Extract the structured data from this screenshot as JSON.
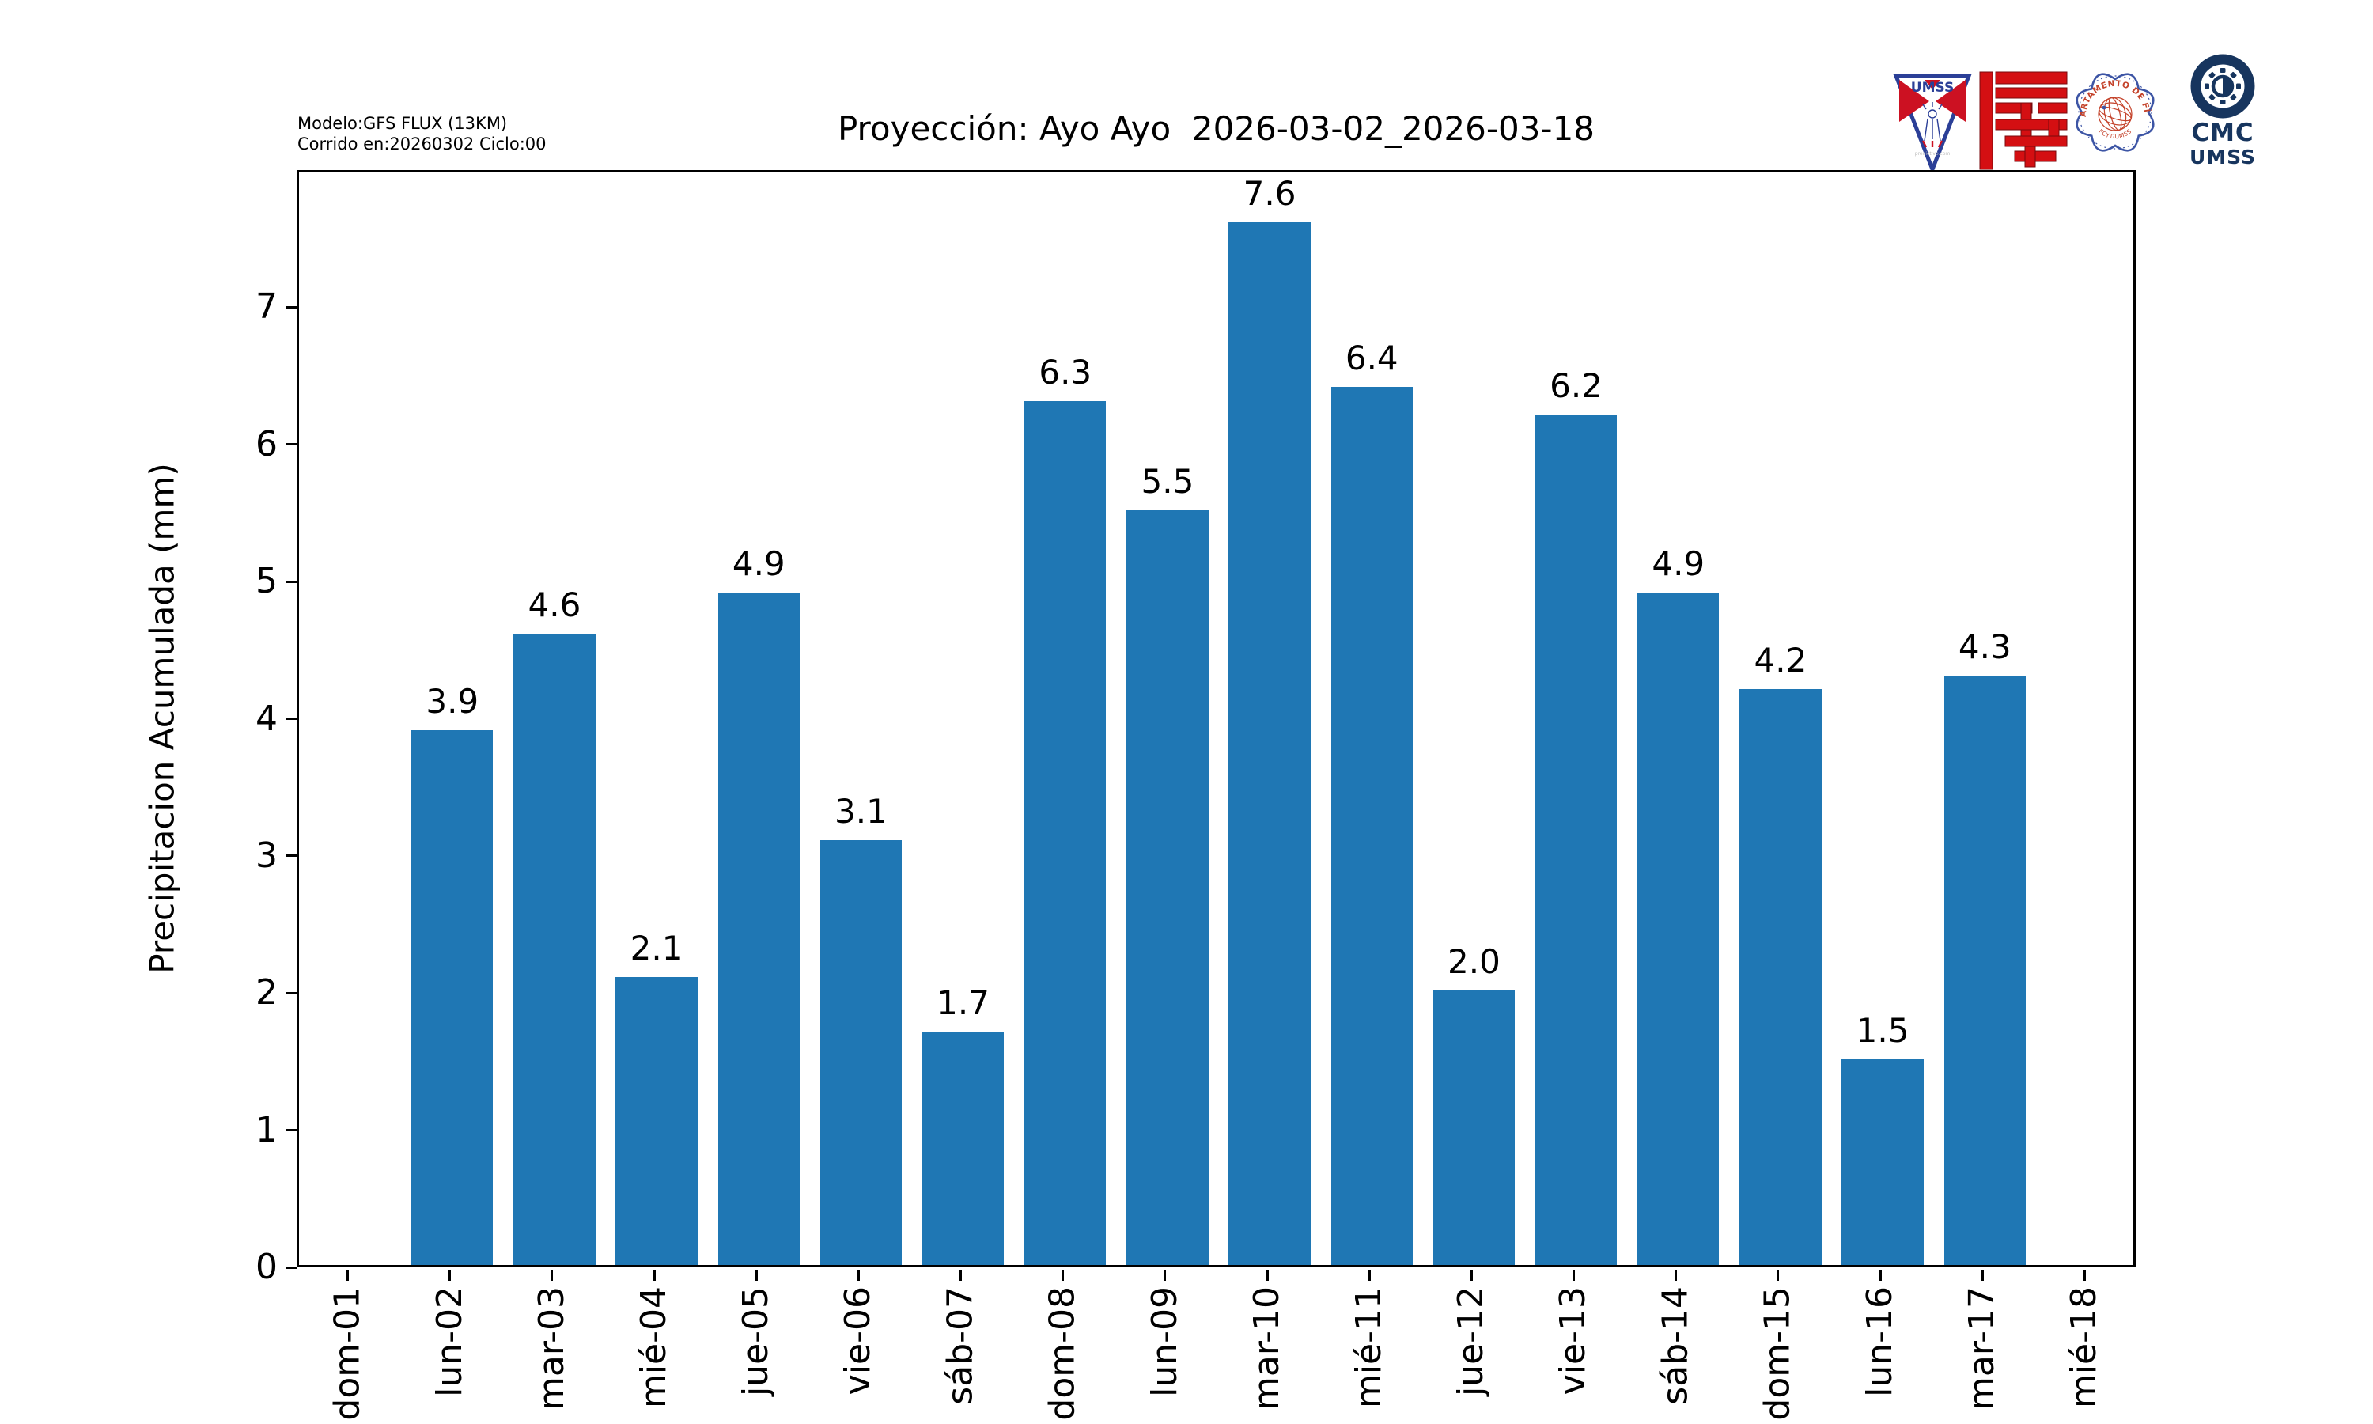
{
  "header": {
    "model_line1": "Modelo:GFS FLUX (13KM)",
    "model_line2": "Corrido en:20260302 Ciclo:00",
    "logos": [
      {
        "name": "umss-pennant",
        "text": "UMSS",
        "watermark": "predictivo.com"
      },
      {
        "name": "fcyt-red-monogram"
      },
      {
        "name": "departamento-fisica-seal",
        "text_top": "DEPARTAMENTO DE FÍSICA",
        "text_bottom": "FCYT-UMSS"
      },
      {
        "name": "cmc-umss",
        "line1": "CMC",
        "line2": "UMSS"
      }
    ]
  },
  "chart_data": {
    "type": "bar",
    "title": "Proyección: Ayo Ayo  2026-03-02_2026-03-18",
    "xlabel": "",
    "ylabel": "Precipitacion Acumulada (mm)",
    "categories": [
      "dom-01",
      "lun-02",
      "mar-03",
      "mié-04",
      "jue-05",
      "vie-06",
      "sáb-07",
      "dom-08",
      "lun-09",
      "mar-10",
      "mié-11",
      "jue-12",
      "vie-13",
      "sáb-14",
      "dom-15",
      "lun-16",
      "mar-17",
      "mié-18"
    ],
    "values": [
      null,
      3.9,
      4.6,
      2.1,
      4.9,
      3.1,
      1.7,
      6.3,
      5.5,
      7.6,
      6.4,
      2.0,
      6.2,
      4.9,
      4.2,
      1.5,
      4.3,
      null
    ],
    "bar_value_labels": [
      "",
      "3.9",
      "4.6",
      "2.1",
      "4.9",
      "3.1",
      "1.7",
      "6.3",
      "5.5",
      "7.6",
      "6.4",
      "2.0",
      "6.2",
      "4.9",
      "4.2",
      "1.5",
      "4.3",
      ""
    ],
    "ylim": [
      0,
      8
    ],
    "yticks": [
      0,
      1,
      2,
      3,
      4,
      5,
      6,
      7
    ],
    "x_tick_rotation": 90,
    "grid": false,
    "legend": null,
    "bar_color": "#1f77b4",
    "bar_width_fraction": 0.8
  },
  "colors": {
    "bar": "#1f77b4",
    "axis": "#000000",
    "logo_navy": "#17355e",
    "logo_blue": "#2b3f97",
    "logo_red": "#d40f12",
    "seal_orange": "#c4432b"
  }
}
